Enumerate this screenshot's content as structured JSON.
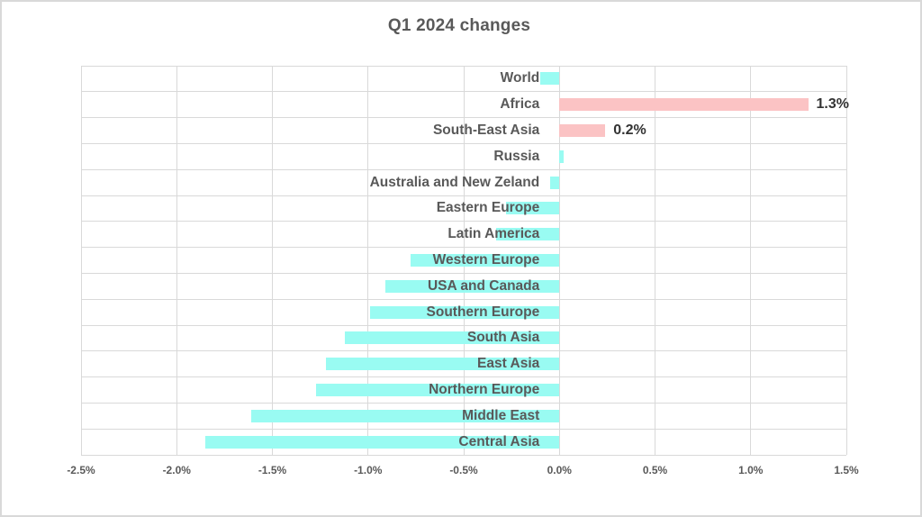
{
  "chart_data": {
    "type": "bar",
    "orientation": "horizontal",
    "title": "Q1 2024 changes",
    "xlabel": "",
    "ylabel": "",
    "x_axis": {
      "min": -2.5,
      "max": 1.5,
      "tick_step": 0.5,
      "tick_labels": [
        "-2.5%",
        "-2.0%",
        "-1.5%",
        "-1.0%",
        "-0.5%",
        "0.0%",
        "0.5%",
        "1.0%",
        "1.5%"
      ],
      "unit": "percent",
      "grid": true
    },
    "categories": [
      "World",
      "Africa",
      "South-East Asia",
      "Russia",
      "Australia and New Zeland",
      "Eastern Europe",
      "Latin America",
      "Western Europe",
      "USA and Canada",
      "Southern Europe",
      "South Asia",
      "East Asia",
      "Northern Europe",
      "Middle East",
      "Central Asia"
    ],
    "series": [
      {
        "name": "Q1 2024 changes",
        "points": [
          {
            "label": "World",
            "value": -0.1,
            "color_key": "cyan",
            "data_label": ""
          },
          {
            "label": "Africa",
            "value": 1.3,
            "color_key": "pink",
            "data_label": "1.3%"
          },
          {
            "label": "South-East Asia",
            "value": 0.24,
            "color_key": "pink",
            "data_label": "0.2%"
          },
          {
            "label": "Russia",
            "value": 0.02,
            "color_key": "cyan",
            "data_label": ""
          },
          {
            "label": "Australia and New Zeland",
            "value": -0.05,
            "color_key": "cyan",
            "data_label": ""
          },
          {
            "label": "Eastern Europe",
            "value": -0.28,
            "color_key": "cyan",
            "data_label": ""
          },
          {
            "label": "Latin America",
            "value": -0.33,
            "color_key": "cyan",
            "data_label": ""
          },
          {
            "label": "Western Europe",
            "value": -0.78,
            "color_key": "cyan",
            "data_label": ""
          },
          {
            "label": "USA and Canada",
            "value": -0.91,
            "color_key": "cyan",
            "data_label": ""
          },
          {
            "label": "Southern Europe",
            "value": -0.99,
            "color_key": "cyan",
            "data_label": ""
          },
          {
            "label": "South Asia",
            "value": -1.12,
            "color_key": "cyan",
            "data_label": ""
          },
          {
            "label": "East Asia",
            "value": -1.22,
            "color_key": "cyan",
            "data_label": ""
          },
          {
            "label": "Northern Europe",
            "value": -1.27,
            "color_key": "cyan",
            "data_label": ""
          },
          {
            "label": "Middle East",
            "value": -1.61,
            "color_key": "cyan",
            "data_label": ""
          },
          {
            "label": "Central Asia",
            "value": -1.85,
            "color_key": "cyan",
            "data_label": ""
          }
        ]
      }
    ],
    "legend": null,
    "colors": {
      "cyan": "#99FBF2",
      "pink": "#FBC3C4",
      "grid": "#D9D9D9",
      "frame_border": "#D9D9D9",
      "title_text": "#595959",
      "category_text": "#595959",
      "tick_text": "#595959",
      "data_label_text": "#333333",
      "background": "#FFFFFF"
    }
  }
}
